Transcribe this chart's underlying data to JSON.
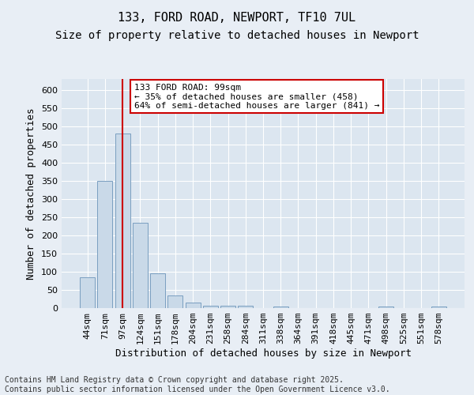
{
  "title1": "133, FORD ROAD, NEWPORT, TF10 7UL",
  "title2": "Size of property relative to detached houses in Newport",
  "xlabel": "Distribution of detached houses by size in Newport",
  "ylabel": "Number of detached properties",
  "categories": [
    "44sqm",
    "71sqm",
    "97sqm",
    "124sqm",
    "151sqm",
    "178sqm",
    "204sqm",
    "231sqm",
    "258sqm",
    "284sqm",
    "311sqm",
    "338sqm",
    "364sqm",
    "391sqm",
    "418sqm",
    "445sqm",
    "471sqm",
    "498sqm",
    "525sqm",
    "551sqm",
    "578sqm"
  ],
  "values": [
    85,
    350,
    480,
    235,
    95,
    35,
    15,
    7,
    7,
    7,
    0,
    5,
    0,
    0,
    0,
    0,
    0,
    5,
    0,
    0,
    5
  ],
  "bar_color": "#c9d9e8",
  "bar_edge_color": "#7a9fc0",
  "vline_x_index": 2,
  "vline_color": "#cc0000",
  "annotation_text": "133 FORD ROAD: 99sqm\n← 35% of detached houses are smaller (458)\n64% of semi-detached houses are larger (841) →",
  "annotation_box_color": "#ffffff",
  "annotation_box_edge_color": "#cc0000",
  "ylim": [
    0,
    630
  ],
  "yticks": [
    0,
    50,
    100,
    150,
    200,
    250,
    300,
    350,
    400,
    450,
    500,
    550,
    600
  ],
  "background_color": "#e8eef5",
  "plot_bg_color": "#dce6f0",
  "grid_color": "#ffffff",
  "footer_text": "Contains HM Land Registry data © Crown copyright and database right 2025.\nContains public sector information licensed under the Open Government Licence v3.0.",
  "title1_fontsize": 11,
  "title2_fontsize": 10,
  "xlabel_fontsize": 9,
  "ylabel_fontsize": 9,
  "tick_fontsize": 8,
  "annotation_fontsize": 8,
  "footer_fontsize": 7
}
